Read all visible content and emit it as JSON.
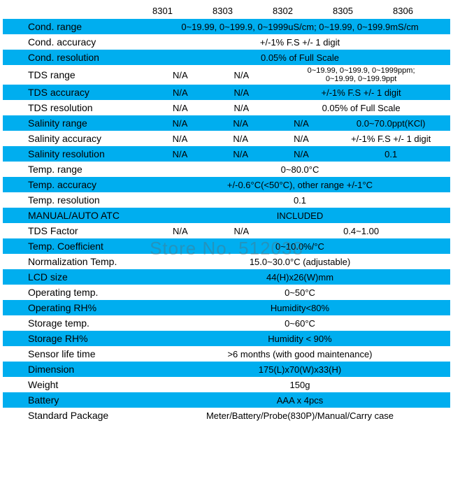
{
  "table": {
    "type": "table",
    "colors": {
      "blue": "#00aeef",
      "white": "#ffffff",
      "text": "#000000",
      "watermark": "rgba(100,100,100,0.35)"
    },
    "label_fontsize": 14,
    "value_fontsize": 13,
    "small_fontsize": 11,
    "headers": [
      "8301",
      "8303",
      "8302",
      "8305",
      "8306"
    ],
    "watermark": "Store No. 512038",
    "rows": [
      {
        "bg": "blue",
        "label": "Cond. range",
        "mode": "single",
        "value": "0~19.99, 0~199.9, 0~1999uS/cm; 0~19.99, 0~199.9mS/cm"
      },
      {
        "bg": "white",
        "label": "Cond. accuracy",
        "mode": "single",
        "value": "+/-1% F.S +/- 1 digit"
      },
      {
        "bg": "blue",
        "label": "Cond. resolution",
        "mode": "single",
        "value": "0.05% of Full Scale"
      },
      {
        "bg": "white",
        "label": "TDS range",
        "mode": "cols",
        "cells": [
          "N/A",
          "N/A",
          {
            "text": "0~19.99, 0~199.9, 0~1999ppm;\n0~19.99, 0~199.9ppt",
            "span": 3,
            "small": true
          }
        ]
      },
      {
        "bg": "blue",
        "label": "TDS accuracy",
        "mode": "cols",
        "cells": [
          "N/A",
          "N/A",
          {
            "text": "+/-1% F.S +/- 1 digit",
            "span": 3
          }
        ]
      },
      {
        "bg": "white",
        "label": "TDS resolution",
        "mode": "cols",
        "cells": [
          "N/A",
          "N/A",
          {
            "text": "0.05% of Full Scale",
            "span": 3
          }
        ]
      },
      {
        "bg": "blue",
        "label": "Salinity range",
        "mode": "cols",
        "cells": [
          "N/A",
          "N/A",
          "N/A",
          {
            "text": "0.0~70.0ppt(KCl)",
            "span": 2
          }
        ]
      },
      {
        "bg": "white",
        "label": "Salinity accuracy",
        "mode": "cols",
        "cells": [
          "N/A",
          "N/A",
          "N/A",
          {
            "text": "+/-1% F.S +/- 1 digit",
            "span": 2
          }
        ]
      },
      {
        "bg": "blue",
        "label": "Salinity resolution",
        "mode": "cols",
        "cells": [
          "N/A",
          "N/A",
          "N/A",
          {
            "text": "0.1",
            "span": 2
          }
        ]
      },
      {
        "bg": "white",
        "label": "Temp. range",
        "mode": "single",
        "value": "0~80.0°C"
      },
      {
        "bg": "blue",
        "label": "Temp. accuracy",
        "mode": "single",
        "value": "+/-0.6°C(<50°C), other range +/-1°C"
      },
      {
        "bg": "white",
        "label": "Temp. resolution",
        "mode": "single",
        "value": "0.1"
      },
      {
        "bg": "blue",
        "label": "MANUAL/AUTO ATC",
        "mode": "single",
        "value": "INCLUDED"
      },
      {
        "bg": "white",
        "label": "TDS Factor",
        "mode": "cols",
        "cells": [
          "N/A",
          "N/A",
          {
            "text": "0.4~1.00",
            "span": 3
          }
        ]
      },
      {
        "bg": "blue",
        "label": "Temp. Coefficient",
        "mode": "single",
        "value": "0~10.0%/°C"
      },
      {
        "bg": "white",
        "label": "Normalization Temp.",
        "mode": "single",
        "value": "15.0~30.0°C (adjustable)"
      },
      {
        "bg": "blue",
        "label": "LCD size",
        "mode": "single",
        "value": "44(H)x26(W)mm"
      },
      {
        "bg": "white",
        "label": "Operating temp.",
        "mode": "single",
        "value": "0~50°C"
      },
      {
        "bg": "blue",
        "label": "Operating RH%",
        "mode": "single",
        "value": "Humidity<80%"
      },
      {
        "bg": "white",
        "label": "Storage temp.",
        "mode": "single",
        "value": "0~60°C"
      },
      {
        "bg": "blue",
        "label": "Storage RH%",
        "mode": "single",
        "value": "Humidity < 90%"
      },
      {
        "bg": "white",
        "label": "Sensor life time",
        "mode": "single",
        "value": ">6 months (with good maintenance)"
      },
      {
        "bg": "blue",
        "label": "Dimension",
        "mode": "single",
        "value": "175(L)x70(W)x33(H)"
      },
      {
        "bg": "white",
        "label": "Weight",
        "mode": "single",
        "value": "150g"
      },
      {
        "bg": "blue",
        "label": "Battery",
        "mode": "single",
        "value": "AAA x 4pcs"
      },
      {
        "bg": "white",
        "label": "Standard Package",
        "mode": "single",
        "value": "Meter/Battery/Probe(830P)/Manual/Carry case"
      }
    ]
  }
}
